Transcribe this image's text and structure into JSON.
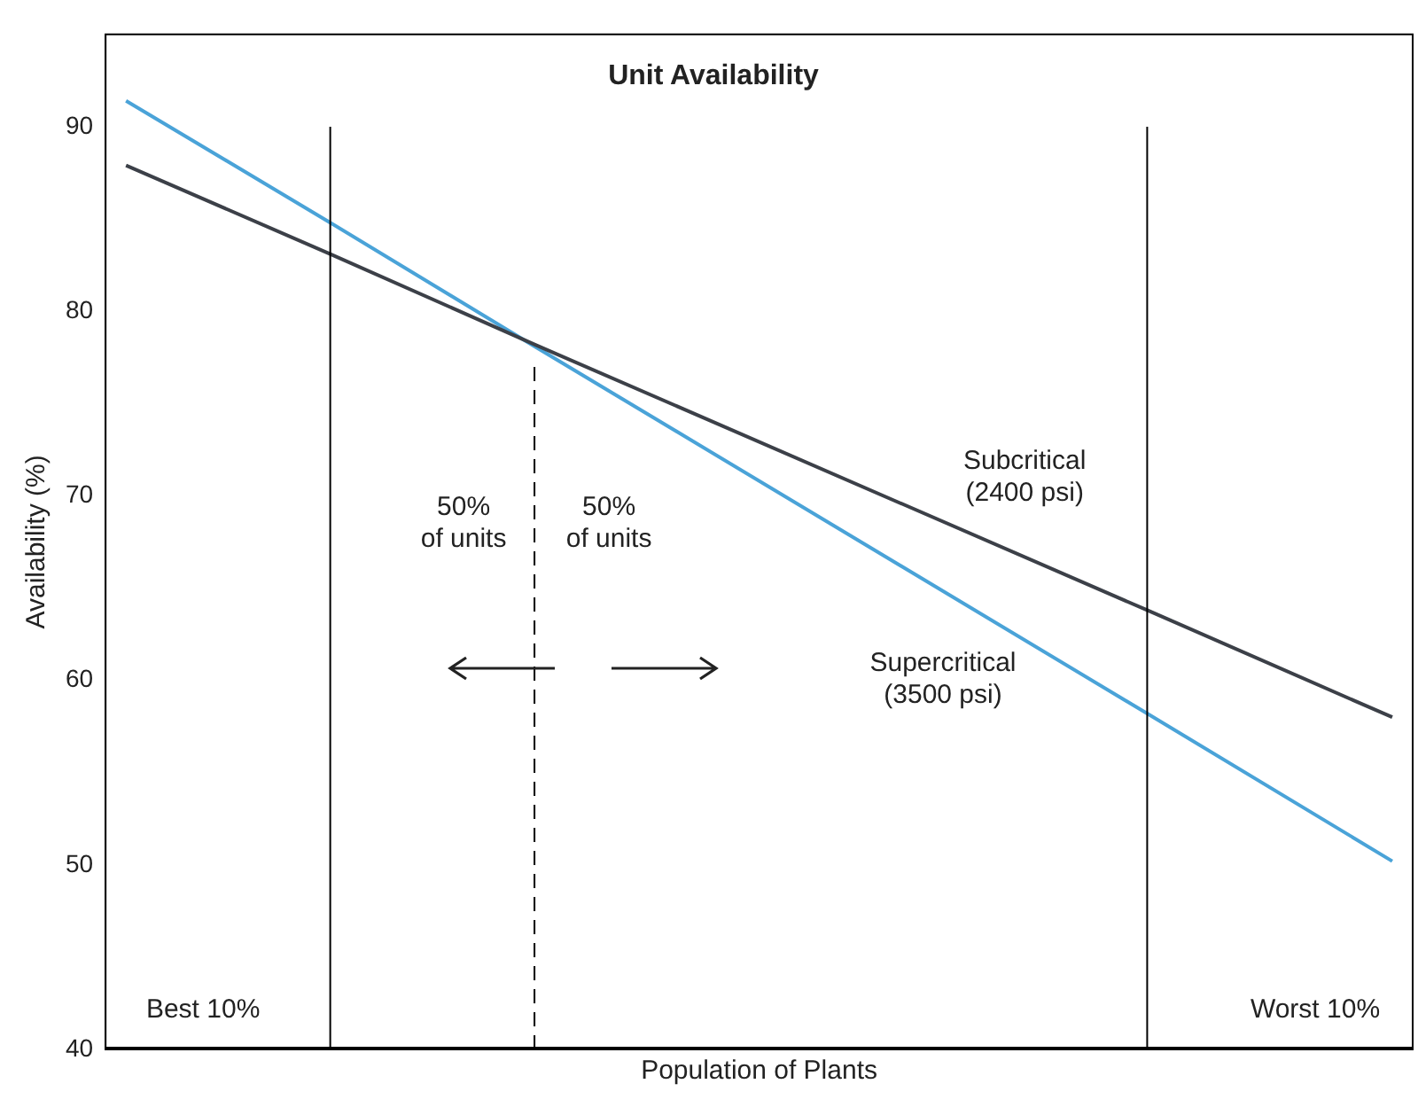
{
  "chart_data": {
    "type": "line",
    "title": "Unit Availability",
    "xlabel": "Population of Plants",
    "ylabel": "Availability (%)",
    "categories": [
      null,
      null,
      null,
      null,
      null,
      null,
      null,
      null,
      null,
      null,
      null,
      null,
      null,
      null,
      null,
      null,
      null,
      null,
      null,
      null,
      null,
      null,
      null,
      null,
      null,
      null,
      null,
      null,
      null,
      null,
      null,
      null
    ],
    "series": [
      {
        "name": "Subcritical\n(2400 psi)",
        "color": "#3c4048",
        "values": [
          87.9,
          null,
          null,
          null,
          null,
          83.1,
          null,
          null,
          null,
          null,
          78.2,
          null,
          null,
          null,
          null,
          null,
          null,
          null,
          null,
          null,
          null,
          null,
          null,
          null,
          null,
          63.8,
          null,
          null,
          null,
          null,
          null,
          58.0
        ]
      },
      {
        "name": "Supercritical\n(3500 psi)",
        "color": "#4aa3d8",
        "values": [
          91.4,
          null,
          null,
          null,
          null,
          84.8,
          null,
          null,
          null,
          null,
          78.1,
          null,
          null,
          null,
          null,
          null,
          null,
          null,
          null,
          null,
          null,
          null,
          null,
          null,
          null,
          58.2,
          null,
          null,
          null,
          null,
          null,
          50.2
        ]
      }
    ],
    "ylim": [
      40,
      95
    ],
    "yticks": [
      40,
      50,
      60,
      70,
      80,
      90
    ],
    "tick_labels": "y",
    "grid": false,
    "legend": false,
    "marker": "none",
    "line_style": "solid",
    "annotations": [
      "50%\nof units",
      "50%\nof units",
      "Best 10%",
      "Worst 10%"
    ]
  }
}
